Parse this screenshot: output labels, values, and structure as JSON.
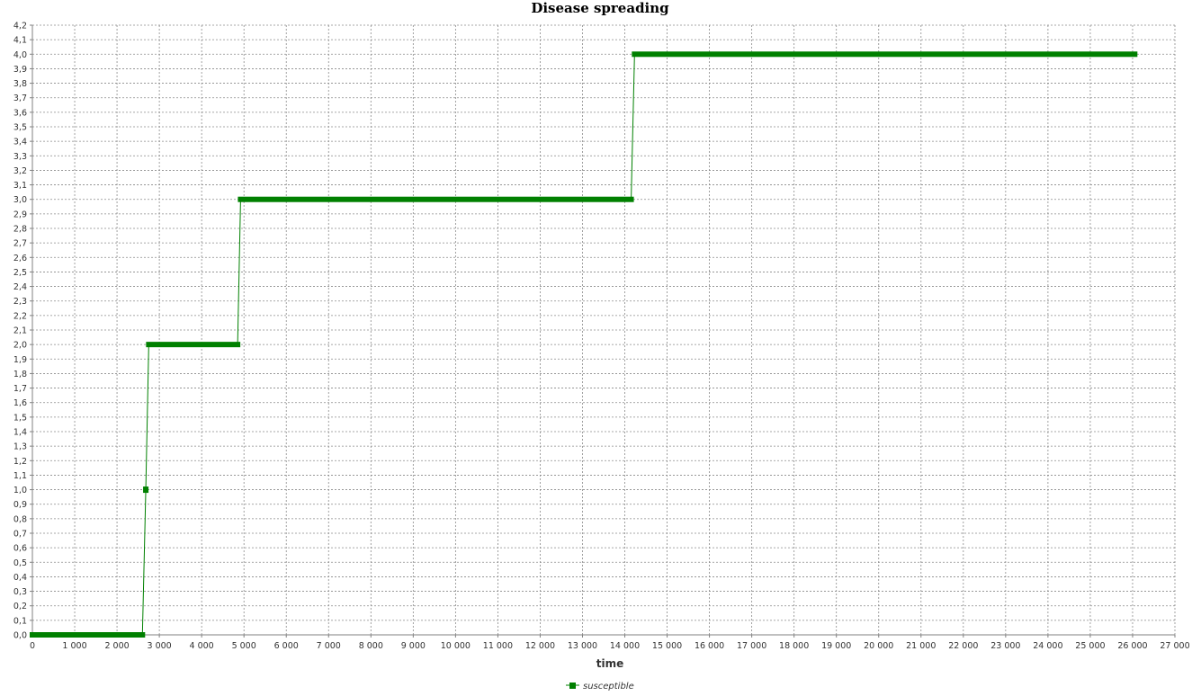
{
  "chart_data": {
    "type": "line",
    "title": "Disease spreading",
    "xlabel": "time",
    "ylabel": "",
    "xlim": [
      0,
      27000
    ],
    "ylim": [
      0,
      4.2
    ],
    "x_ticks": [
      0,
      1000,
      2000,
      3000,
      4000,
      5000,
      6000,
      7000,
      8000,
      9000,
      10000,
      11000,
      12000,
      13000,
      14000,
      15000,
      16000,
      17000,
      18000,
      19000,
      20000,
      21000,
      22000,
      23000,
      24000,
      25000,
      26000,
      27000
    ],
    "x_tick_labels": [
      "0",
      "1 000",
      "2 000",
      "3 000",
      "4 000",
      "5 000",
      "6 000",
      "7 000",
      "8 000",
      "9 000",
      "10 000",
      "11 000",
      "12 000",
      "13 000",
      "14 000",
      "15 000",
      "16 000",
      "17 000",
      "18 000",
      "19 000",
      "20 000",
      "21 000",
      "22 000",
      "23 000",
      "24 000",
      "25 000",
      "26 000",
      "27 000"
    ],
    "y_tick_labels": [
      "0,0",
      "0,1",
      "0,2",
      "0,3",
      "0,4",
      "0,5",
      "0,6",
      "0,7",
      "0,8",
      "0,9",
      "1,0",
      "1,1",
      "1,2",
      "1,3",
      "1,4",
      "1,5",
      "1,6",
      "1,7",
      "1,8",
      "1,9",
      "2,0",
      "2,1",
      "2,2",
      "2,3",
      "2,4",
      "2,5",
      "2,6",
      "2,7",
      "2,8",
      "2,9",
      "3,0",
      "3,1",
      "3,2",
      "3,3",
      "3,4",
      "3,5",
      "3,6",
      "3,7",
      "3,8",
      "3,9",
      "4,0",
      "4,1",
      "4,2"
    ],
    "grid": true,
    "legend_position": "bottom",
    "series": [
      {
        "name": "susceptible",
        "color": "#008000",
        "marker": "square",
        "segments": [
          {
            "x_start": 0,
            "x_end": 2600,
            "y": 0
          },
          {
            "x_start": 2680,
            "x_end": 2680,
            "y": 1
          },
          {
            "x_start": 2750,
            "x_end": 4850,
            "y": 2
          },
          {
            "x_start": 4920,
            "x_end": 14150,
            "y": 3
          },
          {
            "x_start": 14230,
            "x_end": 26050,
            "y": 4
          }
        ]
      }
    ]
  }
}
